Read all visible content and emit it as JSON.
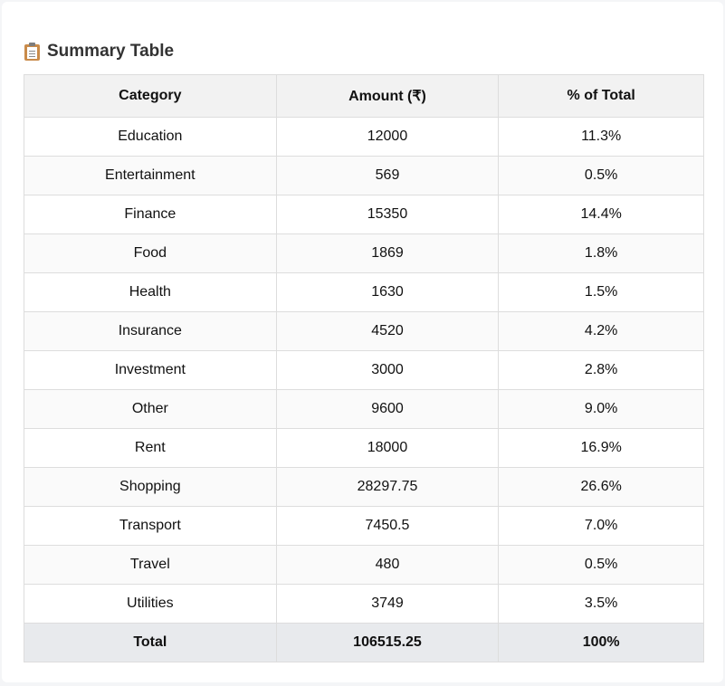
{
  "title": "Summary Table",
  "icons": {
    "title_icon": "clipboard-icon"
  },
  "columns": [
    "Category",
    "Amount (₹)",
    "% of Total"
  ],
  "rows": [
    {
      "category": "Education",
      "amount": "12000",
      "percent": "11.3%"
    },
    {
      "category": "Entertainment",
      "amount": "569",
      "percent": "0.5%"
    },
    {
      "category": "Finance",
      "amount": "15350",
      "percent": "14.4%"
    },
    {
      "category": "Food",
      "amount": "1869",
      "percent": "1.8%"
    },
    {
      "category": "Health",
      "amount": "1630",
      "percent": "1.5%"
    },
    {
      "category": "Insurance",
      "amount": "4520",
      "percent": "4.2%"
    },
    {
      "category": "Investment",
      "amount": "3000",
      "percent": "2.8%"
    },
    {
      "category": "Other",
      "amount": "9600",
      "percent": "9.0%"
    },
    {
      "category": "Rent",
      "amount": "18000",
      "percent": "16.9%"
    },
    {
      "category": "Shopping",
      "amount": "28297.75",
      "percent": "26.6%"
    },
    {
      "category": "Transport",
      "amount": "7450.5",
      "percent": "7.0%"
    },
    {
      "category": "Travel",
      "amount": "480",
      "percent": "0.5%"
    },
    {
      "category": "Utilities",
      "amount": "3749",
      "percent": "3.5%"
    }
  ],
  "total": {
    "category": "Total",
    "amount": "106515.25",
    "percent": "100%"
  },
  "colors": {
    "header_bg": "#f2f2f2",
    "total_bg": "#e8eaed",
    "border": "#dddddd"
  }
}
